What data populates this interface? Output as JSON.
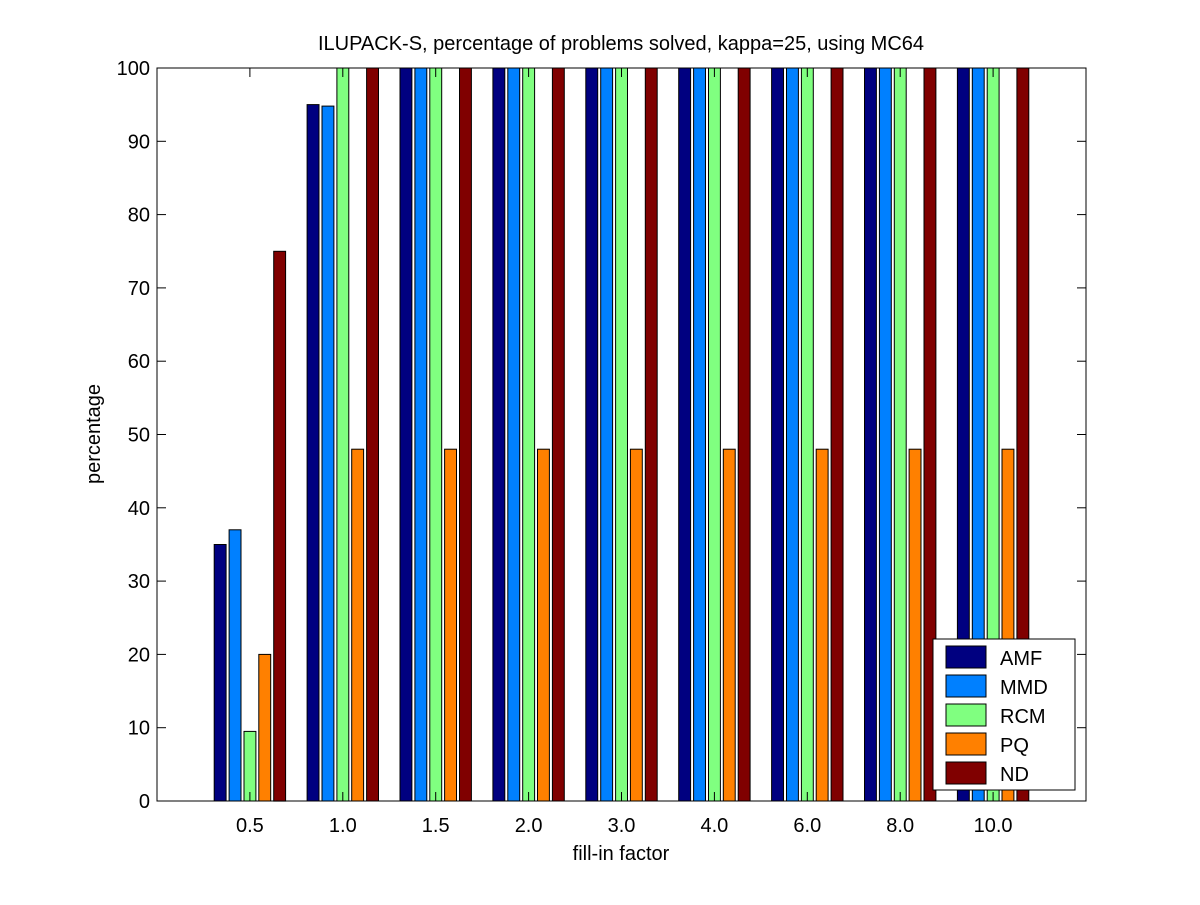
{
  "chart_data": {
    "type": "bar",
    "title": "ILUPACK-S, percentage of problems solved, kappa=25, using MC64",
    "xlabel": "fill-in factor",
    "ylabel": "percentage",
    "categories": [
      "0.5",
      "1.0",
      "1.5",
      "2.0",
      "3.0",
      "4.0",
      "6.0",
      "8.0",
      "10.0"
    ],
    "ylim": [
      0,
      100
    ],
    "yticks": [
      0,
      10,
      20,
      30,
      40,
      50,
      60,
      70,
      80,
      90,
      100
    ],
    "grid": false,
    "legend_position": "bottom-right",
    "series": [
      {
        "name": "AMF",
        "color": "#000080",
        "values": [
          35,
          95,
          100,
          100,
          100,
          100,
          100,
          100,
          100
        ]
      },
      {
        "name": "MMD",
        "color": "#0080ff",
        "values": [
          37,
          94.8,
          100,
          100,
          100,
          100,
          100,
          100,
          100
        ]
      },
      {
        "name": "RCM",
        "color": "#80ff80",
        "values": [
          9.5,
          100,
          100,
          100,
          100,
          100,
          100,
          100,
          100
        ]
      },
      {
        "name": "PQ",
        "color": "#ff8000",
        "values": [
          20,
          48,
          48,
          48,
          48,
          48,
          48,
          48,
          48
        ]
      },
      {
        "name": "ND",
        "color": "#800000",
        "values": [
          75,
          100,
          100,
          100,
          100,
          100,
          100,
          100,
          100
        ]
      }
    ]
  }
}
